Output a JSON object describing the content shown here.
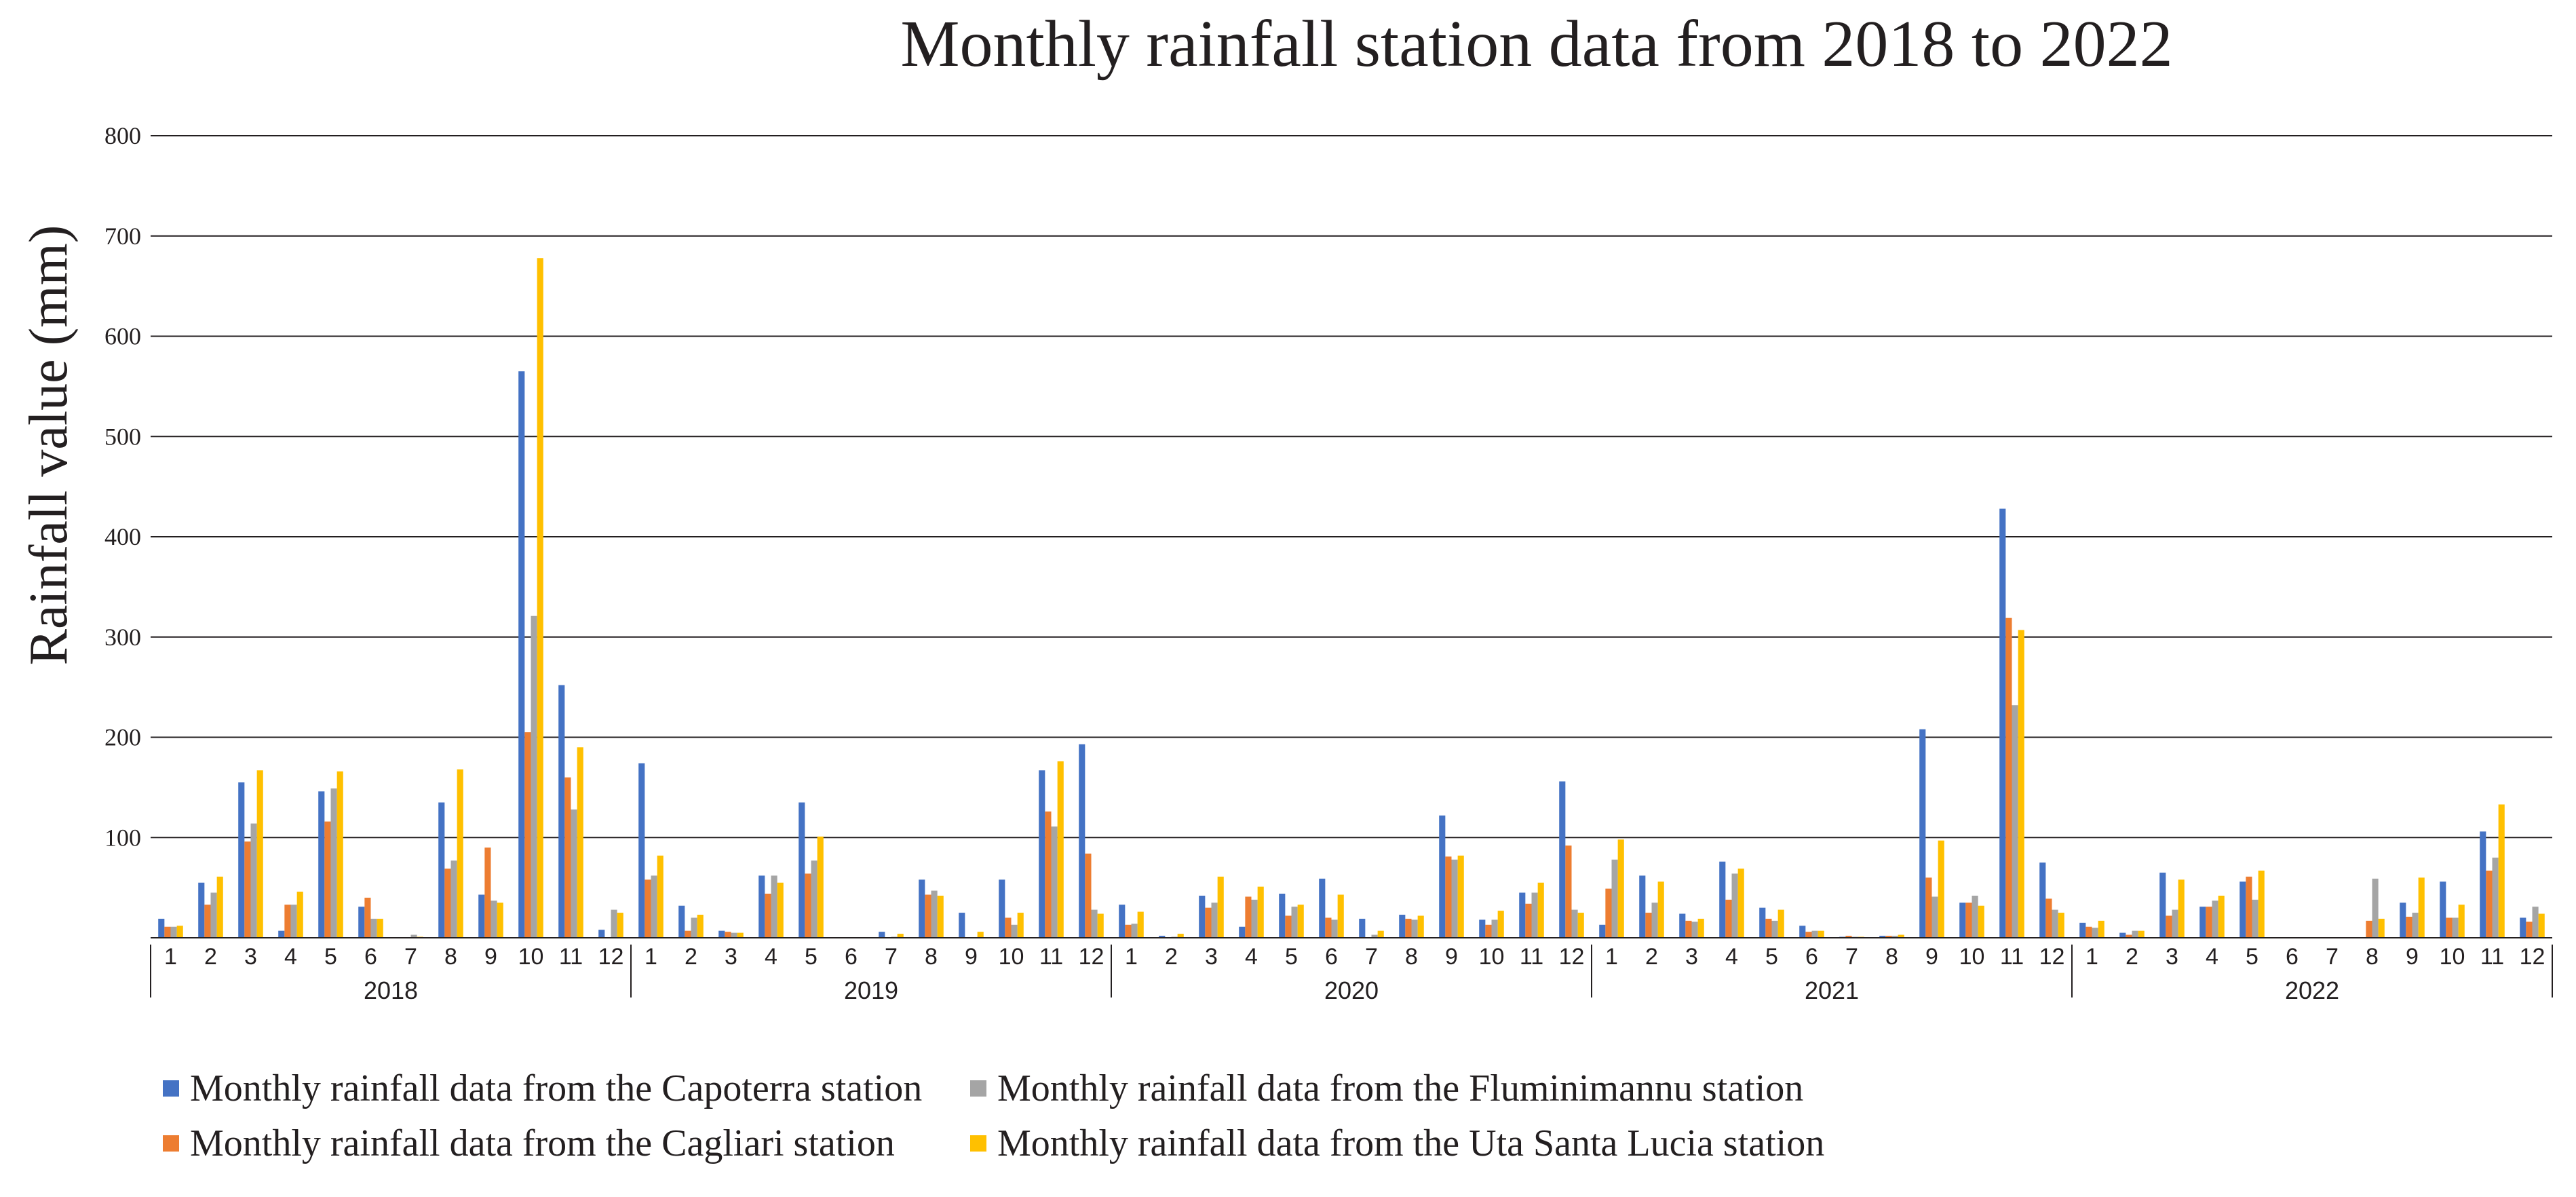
{
  "chart_data": {
    "type": "bar",
    "title": "Monthly rainfall station data from 2018 to 2022",
    "xlabel": "",
    "ylabel": "Rainfall value (mm)",
    "ylim": [
      0,
      800
    ],
    "yticks": [
      "800",
      "700",
      "600",
      "500",
      "400",
      "300",
      "200",
      "100"
    ],
    "grid": true,
    "legend_position": "bottom",
    "years": [
      "2018",
      "2019",
      "2020",
      "2021",
      "2022"
    ],
    "months": [
      "1",
      "2",
      "3",
      "4",
      "5",
      "6",
      "7",
      "8",
      "9",
      "10",
      "11",
      "12"
    ],
    "series": [
      {
        "name": "Monthly rainfall data from the Capoterra station",
        "color": "#4472c4",
        "values": [
          19,
          55,
          155,
          7,
          146,
          31,
          0,
          135,
          43,
          565,
          252,
          8,
          174,
          32,
          7,
          62,
          135,
          0,
          6,
          58,
          25,
          58,
          167,
          193,
          33,
          2,
          42,
          11,
          44,
          59,
          19,
          23,
          122,
          18,
          45,
          156,
          13,
          62,
          24,
          76,
          30,
          12,
          1,
          2,
          208,
          35,
          428,
          75,
          15,
          5,
          65,
          31,
          56,
          0,
          0,
          0,
          35,
          56,
          106,
          20
        ]
      },
      {
        "name": "Monthly rainfall data from the Cagliari station",
        "color": "#ed7d31",
        "values": [
          11,
          33,
          96,
          33,
          116,
          40,
          0,
          69,
          90,
          205,
          160,
          0,
          58,
          7,
          6,
          44,
          64,
          0,
          0,
          43,
          0,
          20,
          126,
          84,
          13,
          0,
          30,
          41,
          22,
          20,
          0,
          19,
          81,
          13,
          34,
          92,
          49,
          25,
          17,
          38,
          19,
          6,
          2,
          2,
          60,
          35,
          319,
          39,
          11,
          3,
          22,
          31,
          61,
          0,
          0,
          17,
          21,
          20,
          67,
          16
        ]
      },
      {
        "name": "Monthly rainfall data from the Fluminimannu station",
        "color": "#a5a5a5",
        "values": [
          11,
          45,
          114,
          33,
          149,
          19,
          3,
          77,
          37,
          321,
          128,
          28,
          62,
          20,
          5,
          62,
          77,
          0,
          1,
          47,
          0,
          13,
          111,
          28,
          14,
          1,
          35,
          38,
          31,
          18,
          3,
          18,
          78,
          18,
          45,
          28,
          78,
          35,
          16,
          64,
          17,
          7,
          1,
          2,
          41,
          42,
          232,
          28,
          10,
          7,
          28,
          37,
          38,
          0,
          0,
          59,
          25,
          20,
          80,
          31
        ]
      },
      {
        "name": "Monthly rainfall data from the Uta Santa Lucia station",
        "color": "#ffc000",
        "values": [
          12,
          61,
          167,
          46,
          166,
          19,
          1,
          168,
          35,
          678,
          190,
          25,
          82,
          23,
          5,
          55,
          101,
          0,
          4,
          42,
          6,
          25,
          176,
          24,
          26,
          4,
          61,
          51,
          33,
          43,
          7,
          22,
          82,
          27,
          55,
          25,
          98,
          56,
          19,
          69,
          28,
          7,
          1,
          3,
          97,
          32,
          307,
          25,
          17,
          7,
          58,
          42,
          67,
          0,
          0,
          19,
          60,
          33,
          133,
          24
        ]
      }
    ]
  }
}
